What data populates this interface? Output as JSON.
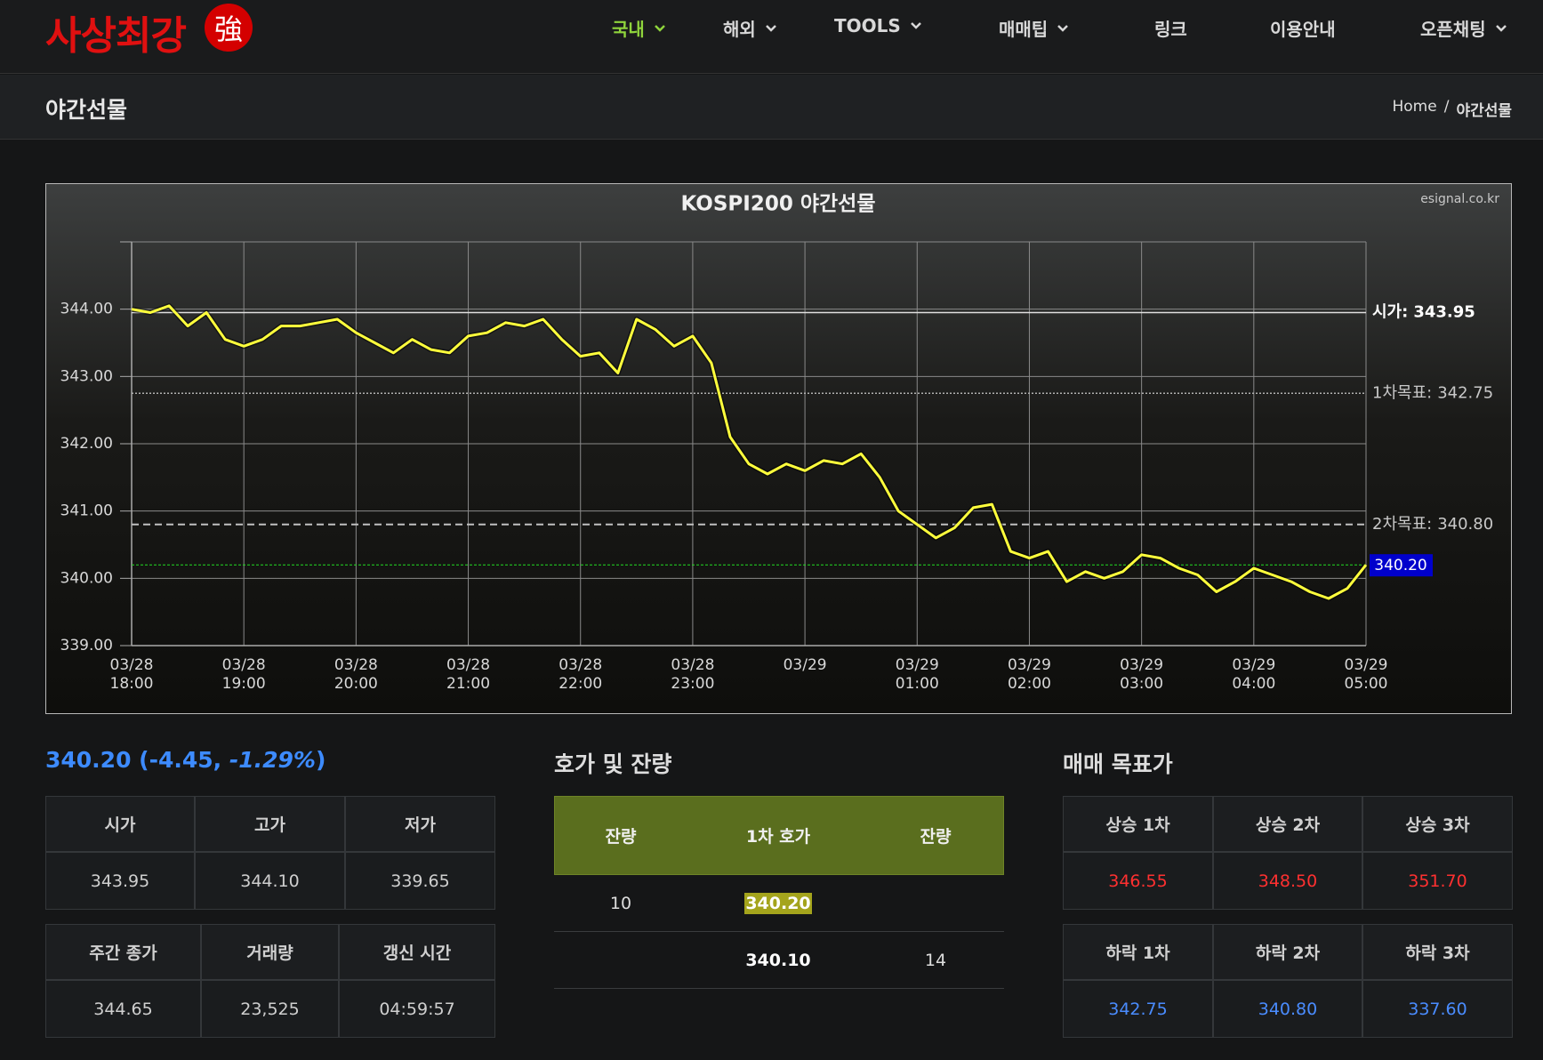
{
  "nav": {
    "logo": "사상최강",
    "logo_mark": "強",
    "items": [
      "국내",
      "해외",
      "TOOLS",
      "매매팁",
      "링크",
      "이용안내",
      "오픈채팅"
    ]
  },
  "header": {
    "title": "야간선물",
    "breadcrumb": [
      "Home",
      "/",
      "야간선물"
    ]
  },
  "chart_data": {
    "type": "line",
    "title": "KOSPI200 야간선물",
    "source": "esignal.co.kr",
    "x": [
      "03/28 18:00",
      "03/28 18:10",
      "03/28 18:20",
      "03/28 18:30",
      "03/28 18:40",
      "03/28 18:50",
      "03/28 19:00",
      "03/28 19:10",
      "03/28 19:20",
      "03/28 19:30",
      "03/28 19:40",
      "03/28 19:50",
      "03/28 20:00",
      "03/28 20:10",
      "03/28 20:20",
      "03/28 20:30",
      "03/28 20:40",
      "03/28 20:50",
      "03/28 21:00",
      "03/28 21:10",
      "03/28 21:20",
      "03/28 21:30",
      "03/28 21:40",
      "03/28 21:50",
      "03/28 22:00",
      "03/28 22:10",
      "03/28 22:20",
      "03/28 22:30",
      "03/28 22:40",
      "03/28 22:50",
      "03/28 23:00",
      "03/28 23:10",
      "03/28 23:20",
      "03/28 23:30",
      "03/28 23:40",
      "03/28 23:50",
      "03/29 00:00",
      "03/29 00:10",
      "03/29 00:20",
      "03/29 00:30",
      "03/29 00:40",
      "03/29 00:50",
      "03/29 01:00",
      "03/29 01:10",
      "03/29 01:20",
      "03/29 01:30",
      "03/29 01:40",
      "03/29 01:50",
      "03/29 02:00",
      "03/29 02:10",
      "03/29 02:20",
      "03/29 02:30",
      "03/29 02:40",
      "03/29 02:50",
      "03/29 03:00",
      "03/29 03:10",
      "03/29 03:20",
      "03/29 03:30",
      "03/29 03:40",
      "03/29 03:50",
      "03/29 04:00",
      "03/29 04:10",
      "03/29 04:20",
      "03/29 04:30",
      "03/29 04:40",
      "03/29 04:50",
      "03/29 05:00"
    ],
    "series": [
      {
        "color": "#ffff3c",
        "values": [
          344.0,
          343.95,
          344.05,
          343.75,
          343.95,
          343.55,
          343.45,
          343.55,
          343.75,
          343.75,
          343.8,
          343.85,
          343.65,
          343.5,
          343.35,
          343.55,
          343.4,
          343.35,
          343.6,
          343.65,
          343.8,
          343.75,
          343.85,
          343.55,
          343.3,
          343.35,
          343.05,
          343.85,
          343.7,
          343.45,
          343.6,
          343.2,
          342.1,
          341.7,
          341.55,
          341.7,
          341.6,
          341.75,
          341.7,
          341.85,
          341.5,
          341.0,
          340.8,
          340.6,
          340.75,
          341.05,
          341.1,
          340.4,
          340.3,
          340.4,
          339.95,
          340.1,
          340.0,
          340.1,
          340.35,
          340.3,
          340.15,
          340.05,
          339.8,
          339.95,
          340.15,
          340.05,
          339.95,
          339.8,
          339.7,
          339.85,
          340.2
        ]
      }
    ],
    "ylim": [
      339,
      345
    ],
    "yticks": [
      {
        "value": 339,
        "label": "339.00"
      },
      {
        "value": 340,
        "label": "340.00"
      },
      {
        "value": 341,
        "label": "341.00"
      },
      {
        "value": 342,
        "label": "342.00"
      },
      {
        "value": 343,
        "label": "343.00"
      },
      {
        "value": 344,
        "label": "344.00"
      }
    ],
    "xticks": [
      {
        "value": "03/28 18:00",
        "label": [
          "03/28",
          "18:00"
        ]
      },
      {
        "value": "03/28 19:00",
        "label": [
          "03/28",
          "19:00"
        ]
      },
      {
        "value": "03/28 20:00",
        "label": [
          "03/28",
          "20:00"
        ]
      },
      {
        "value": "03/28 21:00",
        "label": [
          "03/28",
          "21:00"
        ]
      },
      {
        "value": "03/28 22:00",
        "label": [
          "03/28",
          "22:00"
        ]
      },
      {
        "value": "03/28 23:00",
        "label": [
          "03/28",
          "23:00"
        ]
      },
      {
        "value": "03/29 00:00",
        "label": [
          "03/29"
        ]
      },
      {
        "value": "03/29 01:00",
        "label": [
          "03/29",
          "01:00"
        ]
      },
      {
        "value": "03/29 02:00",
        "label": [
          "03/29",
          "02:00"
        ]
      },
      {
        "value": "03/29 03:00",
        "label": [
          "03/29",
          "03:00"
        ]
      },
      {
        "value": "03/29 04:00",
        "label": [
          "03/29",
          "04:00"
        ]
      },
      {
        "value": "03/29 05:00",
        "label": [
          "03/29",
          "05:00"
        ]
      }
    ],
    "grid": true,
    "reference_lines": [
      {
        "label": "시가:",
        "value": 343.95,
        "value_label": "343.95",
        "color": "#e0e0e0",
        "text_color": "#ffffff",
        "style": "solid"
      },
      {
        "label": "1차목표:",
        "value": 342.75,
        "value_label": "342.75",
        "color": "#b0b0b0",
        "text_color": "#c8c8c8",
        "style": "dotted"
      },
      {
        "label": "2차목표:",
        "value": 340.8,
        "value_label": "340.80",
        "color": "#c0c0c0",
        "text_color": "#c8c8c8",
        "style": "dashed"
      }
    ],
    "current": {
      "value": 340.2,
      "value_label": "340.20",
      "color": "#22dd22",
      "box_color": "#0000cc"
    }
  },
  "summary": [
    "340.20 (-4.45, ",
    "-1.29%",
    ")"
  ],
  "price_table": {
    "headers": [
      "시가",
      "고가",
      "저가"
    ],
    "values": [
      "343.95",
      "344.10",
      "339.65"
    ]
  },
  "info_table": {
    "headers": [
      "주간 종가",
      "거래량",
      "갱신 시간"
    ],
    "values": [
      "344.65",
      "23,525",
      "04:59:57"
    ]
  },
  "order_book": {
    "title": "호가 및 잔량",
    "headers": [
      "잔량",
      "1차 호가",
      "잔량"
    ],
    "rows": [
      {
        "ask_qty": "10",
        "price": "340.20"
      },
      {
        "price": "340.10",
        "bid_qty": "14"
      }
    ]
  },
  "targets": {
    "title": "매매 목표가",
    "up": {
      "headers": [
        "상승 1차",
        "상승 2차",
        "상승 3차"
      ],
      "values": [
        "346.55",
        "348.50",
        "351.70"
      ]
    },
    "down": {
      "headers": [
        "하락 1차",
        "하락 2차",
        "하락 3차"
      ],
      "values": [
        "342.75",
        "340.80",
        "337.60"
      ]
    }
  }
}
